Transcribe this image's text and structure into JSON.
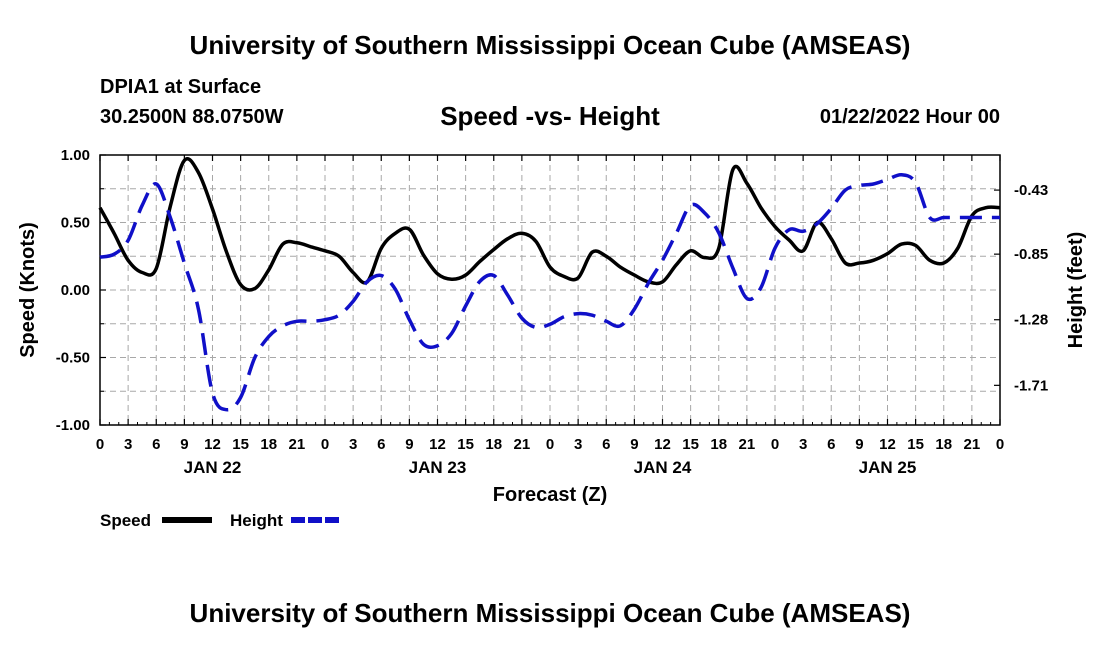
{
  "header": {
    "title": "University of Southern Mississippi Ocean Cube (AMSEAS)",
    "station": "DPIA1 at Surface",
    "coords": "30.2500N  88.0750W",
    "subtitle": "Speed -vs- Height",
    "datetime": "01/22/2022 Hour 00"
  },
  "footer": {
    "title": "University of Southern Mississippi Ocean Cube (AMSEAS)"
  },
  "colors": {
    "speed": "#000000",
    "height": "#1010c8",
    "grid": "#a8a8a8"
  },
  "chart_data": {
    "type": "line",
    "title": "Speed -vs- Height",
    "xlabel": "Forecast (Z)",
    "ylabel": "Speed (Knots)",
    "y2label": "Height (feet)",
    "xlim": [
      0,
      96
    ],
    "ylim": [
      -1.0,
      1.0
    ],
    "y2lim": [
      -1.97,
      -0.2
    ],
    "x_ticks": [
      0,
      3,
      6,
      9,
      12,
      15,
      18,
      21,
      24,
      27,
      30,
      33,
      36,
      39,
      42,
      45,
      48,
      51,
      54,
      57,
      60,
      63,
      66,
      69,
      72,
      75,
      78,
      81,
      84,
      87,
      90,
      93,
      96
    ],
    "x_tick_labels": [
      "0",
      "3",
      "6",
      "9",
      "12",
      "15",
      "18",
      "21",
      "0",
      "3",
      "6",
      "9",
      "12",
      "15",
      "18",
      "21",
      "0",
      "3",
      "6",
      "9",
      "12",
      "15",
      "18",
      "21",
      "0",
      "3",
      "6",
      "9",
      "12",
      "15",
      "18",
      "21",
      "0"
    ],
    "day_labels": [
      {
        "x": 12,
        "label": "JAN 22"
      },
      {
        "x": 36,
        "label": "JAN 23"
      },
      {
        "x": 60,
        "label": "JAN 24"
      },
      {
        "x": 84,
        "label": "JAN 25"
      }
    ],
    "y_ticks": [
      {
        "value": 1.0,
        "label": "1.00"
      },
      {
        "value": 0.5,
        "label": "0.50"
      },
      {
        "value": 0.0,
        "label": "0.00"
      },
      {
        "value": -0.5,
        "label": "-0.50"
      },
      {
        "value": -1.0,
        "label": "-1.00"
      }
    ],
    "y2_ticks": [
      {
        "value": -0.43,
        "label": "-0.43"
      },
      {
        "value": -0.85,
        "label": "-0.85"
      },
      {
        "value": -1.28,
        "label": "-1.28"
      },
      {
        "value": -1.71,
        "label": "-1.71"
      }
    ],
    "legend": [
      {
        "label": "Speed",
        "series": "speed"
      },
      {
        "label": "Height",
        "series": "height"
      }
    ],
    "series": [
      {
        "name": "Speed",
        "axis": "left",
        "style": "solid",
        "x": [
          0,
          1.5,
          3,
          4.5,
          6,
          7.5,
          9,
          10.5,
          12,
          13.5,
          15,
          16.5,
          18,
          19.5,
          21,
          22.5,
          24,
          25.5,
          27,
          28.5,
          30,
          31.5,
          33,
          34.5,
          36,
          37.5,
          39,
          40.5,
          42,
          43.5,
          45,
          46.5,
          48,
          49.5,
          51,
          52.5,
          54,
          55.5,
          57,
          58.5,
          60,
          61.5,
          63,
          64.5,
          66,
          67.5,
          69,
          70.5,
          72,
          73.5,
          75,
          76.5,
          78,
          79.5,
          81,
          82.5,
          84,
          85.5,
          87,
          88.5,
          90,
          91.5,
          93,
          94.5,
          96
        ],
        "values": [
          0.61,
          0.42,
          0.22,
          0.13,
          0.16,
          0.62,
          0.96,
          0.87,
          0.6,
          0.28,
          0.04,
          0.01,
          0.15,
          0.34,
          0.35,
          0.32,
          0.29,
          0.25,
          0.13,
          0.06,
          0.31,
          0.42,
          0.45,
          0.26,
          0.12,
          0.08,
          0.11,
          0.21,
          0.3,
          0.38,
          0.42,
          0.36,
          0.17,
          0.1,
          0.09,
          0.28,
          0.25,
          0.17,
          0.11,
          0.06,
          0.06,
          0.19,
          0.29,
          0.24,
          0.31,
          0.89,
          0.79,
          0.61,
          0.47,
          0.37,
          0.29,
          0.5,
          0.38,
          0.2,
          0.2,
          0.22,
          0.27,
          0.34,
          0.33,
          0.22,
          0.2,
          0.31,
          0.55,
          0.61,
          0.61
        ]
      },
      {
        "name": "Height",
        "axis": "right",
        "style": "dashed",
        "x": [
          0,
          1.5,
          3,
          4.5,
          6,
          7.5,
          9,
          10.5,
          12,
          13.5,
          15,
          16.5,
          18,
          19.5,
          21,
          22.5,
          24,
          25.5,
          27,
          28.5,
          30,
          31.5,
          33,
          34.5,
          36,
          37.5,
          39,
          40.5,
          42,
          43.5,
          45,
          46.5,
          48,
          49.5,
          51,
          52.5,
          54,
          55.5,
          57,
          58.5,
          60,
          61.5,
          63,
          64.5,
          66,
          67.5,
          69,
          70.5,
          72,
          73.5,
          75,
          76.5,
          78,
          79.5,
          81,
          82.5,
          84,
          85.5,
          87,
          88.5,
          90,
          91.5,
          93,
          94.5,
          96
        ],
        "values": [
          -0.87,
          -0.85,
          -0.76,
          -0.53,
          -0.39,
          -0.61,
          -0.91,
          -1.21,
          -1.76,
          -1.87,
          -1.79,
          -1.53,
          -1.39,
          -1.32,
          -1.29,
          -1.29,
          -1.28,
          -1.25,
          -1.16,
          -1.03,
          -0.99,
          -1.08,
          -1.28,
          -1.44,
          -1.45,
          -1.37,
          -1.19,
          -1.03,
          -0.99,
          -1.12,
          -1.27,
          -1.33,
          -1.31,
          -1.26,
          -1.24,
          -1.25,
          -1.29,
          -1.32,
          -1.21,
          -1.04,
          -0.89,
          -0.71,
          -0.53,
          -0.58,
          -0.71,
          -0.94,
          -1.14,
          -1.07,
          -0.81,
          -0.69,
          -0.7,
          -0.65,
          -0.55,
          -0.43,
          -0.4,
          -0.39,
          -0.36,
          -0.33,
          -0.38,
          -0.61,
          -0.61,
          -0.61,
          -0.61,
          -0.61,
          -0.61
        ]
      }
    ]
  }
}
